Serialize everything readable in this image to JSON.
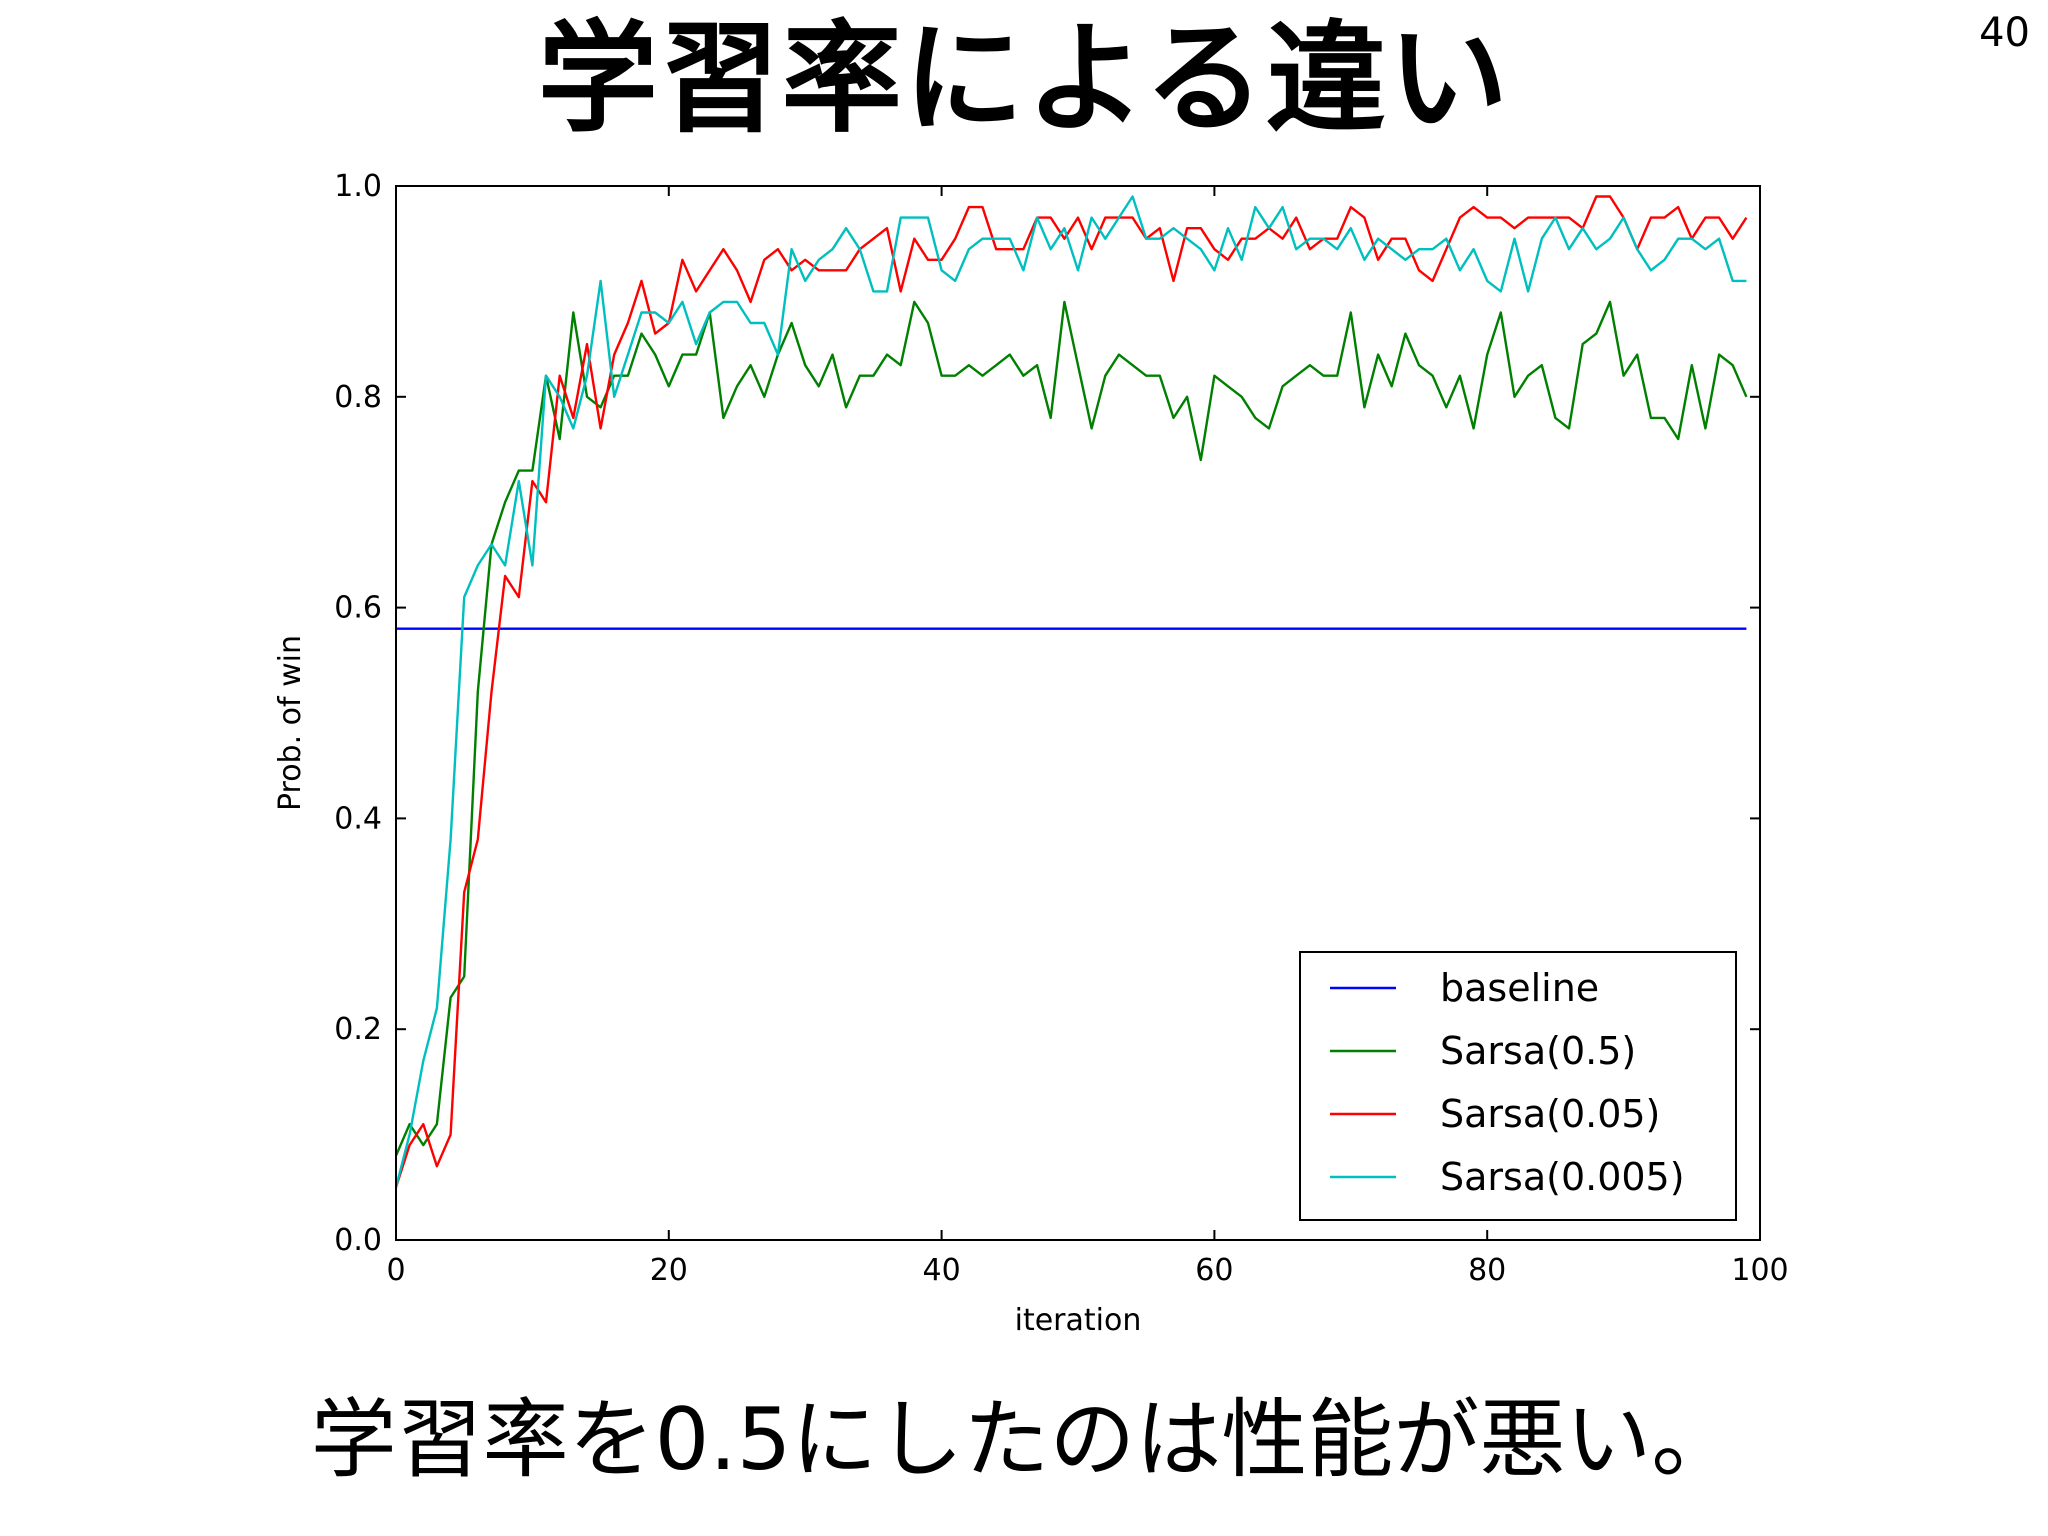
{
  "slide": {
    "title": "学習率による違い",
    "page_number": "40",
    "caption": "学習率を0.5にしたのは性能が悪い。"
  },
  "chart_data": {
    "type": "line",
    "title": "",
    "xlabel": "iteration",
    "ylabel": "Prob. of win",
    "xlim": [
      0,
      100
    ],
    "ylim": [
      0,
      1.0
    ],
    "xticks": [
      "0",
      "20",
      "40",
      "60",
      "80",
      "100"
    ],
    "yticks": [
      "0.0",
      "0.2",
      "0.4",
      "0.6",
      "0.8",
      "1.0"
    ],
    "grid": false,
    "legend_position": "lower-right",
    "x": [
      0,
      1,
      2,
      3,
      4,
      5,
      6,
      7,
      8,
      9,
      10,
      11,
      12,
      13,
      14,
      15,
      16,
      17,
      18,
      19,
      20,
      21,
      22,
      23,
      24,
      25,
      26,
      27,
      28,
      29,
      30,
      31,
      32,
      33,
      34,
      35,
      36,
      37,
      38,
      39,
      40,
      41,
      42,
      43,
      44,
      45,
      46,
      47,
      48,
      49,
      50,
      51,
      52,
      53,
      54,
      55,
      56,
      57,
      58,
      59,
      60,
      61,
      62,
      63,
      64,
      65,
      66,
      67,
      68,
      69,
      70,
      71,
      72,
      73,
      74,
      75,
      76,
      77,
      78,
      79,
      80,
      81,
      82,
      83,
      84,
      85,
      86,
      87,
      88,
      89,
      90,
      91,
      92,
      93,
      94,
      95,
      96,
      97,
      98,
      99
    ],
    "series": [
      {
        "name": "baseline",
        "color": "#0000ff",
        "values": [
          0.58,
          0.58,
          0.58,
          0.58,
          0.58,
          0.58,
          0.58,
          0.58,
          0.58,
          0.58,
          0.58,
          0.58,
          0.58,
          0.58,
          0.58,
          0.58,
          0.58,
          0.58,
          0.58,
          0.58,
          0.58,
          0.58,
          0.58,
          0.58,
          0.58,
          0.58,
          0.58,
          0.58,
          0.58,
          0.58,
          0.58,
          0.58,
          0.58,
          0.58,
          0.58,
          0.58,
          0.58,
          0.58,
          0.58,
          0.58,
          0.58,
          0.58,
          0.58,
          0.58,
          0.58,
          0.58,
          0.58,
          0.58,
          0.58,
          0.58,
          0.58,
          0.58,
          0.58,
          0.58,
          0.58,
          0.58,
          0.58,
          0.58,
          0.58,
          0.58,
          0.58,
          0.58,
          0.58,
          0.58,
          0.58,
          0.58,
          0.58,
          0.58,
          0.58,
          0.58,
          0.58,
          0.58,
          0.58,
          0.58,
          0.58,
          0.58,
          0.58,
          0.58,
          0.58,
          0.58,
          0.58,
          0.58,
          0.58,
          0.58,
          0.58,
          0.58,
          0.58,
          0.58,
          0.58,
          0.58,
          0.58,
          0.58,
          0.58,
          0.58,
          0.58,
          0.58,
          0.58,
          0.58,
          0.58,
          0.58
        ]
      },
      {
        "name": "Sarsa(0.5)",
        "color": "#008000",
        "values": [
          0.08,
          0.11,
          0.09,
          0.11,
          0.23,
          0.25,
          0.52,
          0.66,
          0.7,
          0.73,
          0.73,
          0.82,
          0.76,
          0.88,
          0.8,
          0.79,
          0.82,
          0.82,
          0.86,
          0.84,
          0.81,
          0.84,
          0.84,
          0.88,
          0.78,
          0.81,
          0.83,
          0.8,
          0.84,
          0.87,
          0.83,
          0.81,
          0.84,
          0.79,
          0.82,
          0.82,
          0.84,
          0.83,
          0.89,
          0.87,
          0.82,
          0.82,
          0.83,
          0.82,
          0.83,
          0.84,
          0.82,
          0.83,
          0.78,
          0.89,
          0.83,
          0.77,
          0.82,
          0.84,
          0.83,
          0.82,
          0.82,
          0.78,
          0.8,
          0.74,
          0.82,
          0.81,
          0.8,
          0.78,
          0.77,
          0.81,
          0.82,
          0.83,
          0.82,
          0.82,
          0.88,
          0.79,
          0.84,
          0.81,
          0.86,
          0.83,
          0.82,
          0.79,
          0.82,
          0.77,
          0.84,
          0.88,
          0.8,
          0.82,
          0.83,
          0.78,
          0.77,
          0.85,
          0.86,
          0.89,
          0.82,
          0.84,
          0.78,
          0.78,
          0.76,
          0.83,
          0.77,
          0.84,
          0.83,
          0.8
        ]
      },
      {
        "name": "Sarsa(0.05)",
        "color": "#ff0000",
        "values": [
          0.05,
          0.09,
          0.11,
          0.07,
          0.1,
          0.33,
          0.38,
          0.52,
          0.63,
          0.61,
          0.72,
          0.7,
          0.82,
          0.78,
          0.85,
          0.77,
          0.84,
          0.87,
          0.91,
          0.86,
          0.87,
          0.93,
          0.9,
          0.92,
          0.94,
          0.92,
          0.89,
          0.93,
          0.94,
          0.92,
          0.93,
          0.92,
          0.92,
          0.92,
          0.94,
          0.95,
          0.96,
          0.9,
          0.95,
          0.93,
          0.93,
          0.95,
          0.98,
          0.98,
          0.94,
          0.94,
          0.94,
          0.97,
          0.97,
          0.95,
          0.97,
          0.94,
          0.97,
          0.97,
          0.97,
          0.95,
          0.96,
          0.91,
          0.96,
          0.96,
          0.94,
          0.93,
          0.95,
          0.95,
          0.96,
          0.95,
          0.97,
          0.94,
          0.95,
          0.95,
          0.98,
          0.97,
          0.93,
          0.95,
          0.95,
          0.92,
          0.91,
          0.94,
          0.97,
          0.98,
          0.97,
          0.97,
          0.96,
          0.97,
          0.97,
          0.97,
          0.97,
          0.96,
          0.99,
          0.99,
          0.97,
          0.94,
          0.97,
          0.97,
          0.98,
          0.95,
          0.97,
          0.97,
          0.95,
          0.97
        ]
      },
      {
        "name": "Sarsa(0.005)",
        "color": "#00bfbf",
        "values": [
          0.05,
          0.1,
          0.17,
          0.22,
          0.38,
          0.61,
          0.64,
          0.66,
          0.64,
          0.72,
          0.64,
          0.82,
          0.8,
          0.77,
          0.82,
          0.91,
          0.8,
          0.84,
          0.88,
          0.88,
          0.87,
          0.89,
          0.85,
          0.88,
          0.89,
          0.89,
          0.87,
          0.87,
          0.84,
          0.94,
          0.91,
          0.93,
          0.94,
          0.96,
          0.94,
          0.9,
          0.9,
          0.97,
          0.97,
          0.97,
          0.92,
          0.91,
          0.94,
          0.95,
          0.95,
          0.95,
          0.92,
          0.97,
          0.94,
          0.96,
          0.92,
          0.97,
          0.95,
          0.97,
          0.99,
          0.95,
          0.95,
          0.96,
          0.95,
          0.94,
          0.92,
          0.96,
          0.93,
          0.98,
          0.96,
          0.98,
          0.94,
          0.95,
          0.95,
          0.94,
          0.96,
          0.93,
          0.95,
          0.94,
          0.93,
          0.94,
          0.94,
          0.95,
          0.92,
          0.94,
          0.91,
          0.9,
          0.95,
          0.9,
          0.95,
          0.97,
          0.94,
          0.96,
          0.94,
          0.95,
          0.97,
          0.94,
          0.92,
          0.93,
          0.95,
          0.95,
          0.94,
          0.95,
          0.91,
          0.91
        ]
      }
    ]
  }
}
